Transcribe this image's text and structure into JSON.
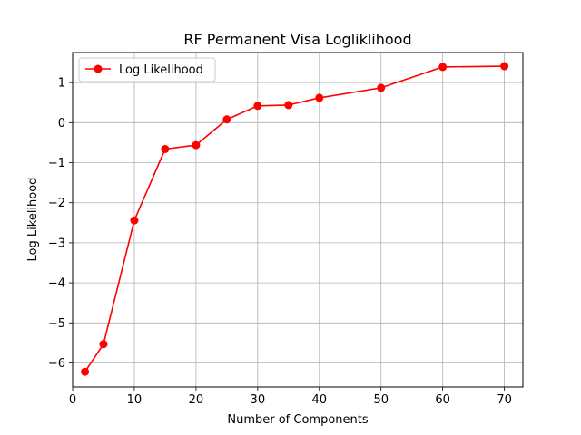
{
  "chart_data": {
    "type": "line",
    "title": "RF Permanent Visa Logliklihood",
    "xlabel": "Number of Components",
    "ylabel": "Log Likelihood",
    "xlim": [
      0,
      73
    ],
    "ylim": [
      -6.6,
      1.75
    ],
    "xticks": [
      0,
      10,
      20,
      30,
      40,
      50,
      60,
      70
    ],
    "yticks": [
      -6,
      -5,
      -4,
      -3,
      -2,
      -1,
      0,
      1
    ],
    "xtick_labels": [
      "0",
      "10",
      "20",
      "30",
      "40",
      "50",
      "60",
      "70"
    ],
    "ytick_labels": [
      "−6",
      "−5",
      "−4",
      "−3",
      "−2",
      "−1",
      "0",
      "1"
    ],
    "grid": true,
    "legend_position": "upper-left",
    "series": [
      {
        "name": "Log Likelihood",
        "color": "#ff0000",
        "marker": "circle",
        "x": [
          2,
          5,
          10,
          15,
          20,
          25,
          30,
          35,
          40,
          50,
          60,
          70
        ],
        "y": [
          -6.22,
          -5.53,
          -2.44,
          -0.66,
          -0.56,
          0.08,
          0.42,
          0.44,
          0.62,
          0.87,
          1.39,
          1.41
        ]
      }
    ]
  }
}
